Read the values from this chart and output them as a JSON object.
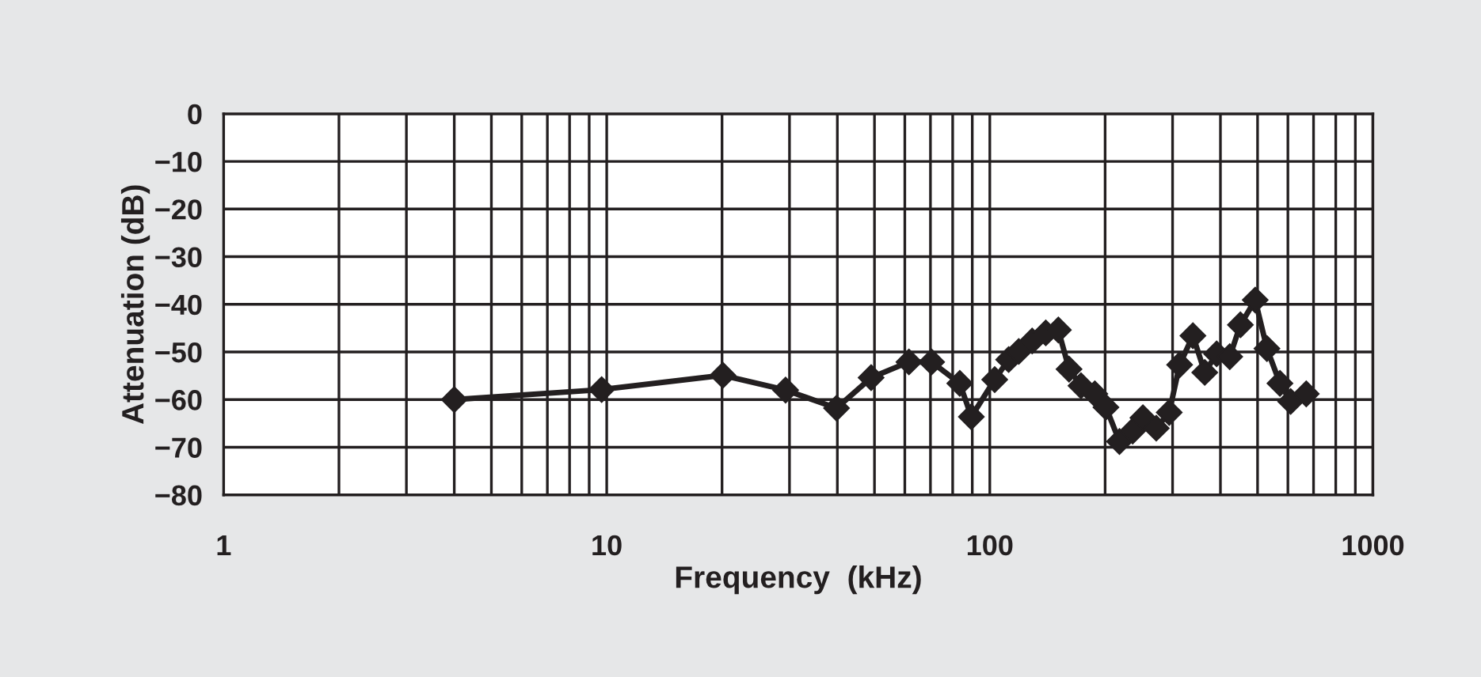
{
  "chart_data": {
    "type": "line",
    "xlabel": "Frequency  (kHz)",
    "ylabel": "Attenuation (dB)",
    "log": "x",
    "x": [
      4,
      9.7,
      20.1,
      29.3,
      39.8,
      49,
      61.5,
      70.5,
      83.5,
      89.5,
      103,
      112,
      119,
      129,
      140,
      151,
      161,
      173,
      188,
      201,
      218,
      236,
      251,
      272,
      294,
      313,
      339,
      364,
      391,
      423,
      451,
      493,
      529,
      572,
      610,
      670
    ],
    "series": [
      {
        "color": "#231f20",
        "values": [
          -60,
          -57.9,
          -54.9,
          -58,
          -61.8,
          -55.4,
          -52.1,
          -52.1,
          -56.6,
          -63.6,
          -55.8,
          -51.6,
          -49.9,
          -47.7,
          -46,
          -45.4,
          -53.6,
          -57.1,
          -58.8,
          -61.6,
          -68.8,
          -66.6,
          -63.8,
          -66,
          -62.7,
          -52.7,
          -46.6,
          -54.3,
          -50.4,
          -51,
          -44.3,
          -39.1,
          -49.3,
          -56.6,
          -60.4,
          -58.8
        ]
      }
    ],
    "xlim": [
      1,
      1000
    ],
    "xticks": [
      1,
      10,
      100,
      1000
    ],
    "ylim": [
      -80,
      0
    ],
    "yticks": [
      {
        "value": -80,
        "label": "−80"
      },
      {
        "value": -70,
        "label": "−70"
      },
      {
        "value": -60,
        "label": "−60"
      },
      {
        "value": -50,
        "label": "−50"
      },
      {
        "value": -40,
        "label": "−40"
      },
      {
        "value": -30,
        "label": "−30"
      },
      {
        "value": -20,
        "label": "−20"
      },
      {
        "value": -10,
        "label": "−10"
      },
      0
    ],
    "grid": true,
    "marker": "diamond",
    "line_style": "solid"
  }
}
